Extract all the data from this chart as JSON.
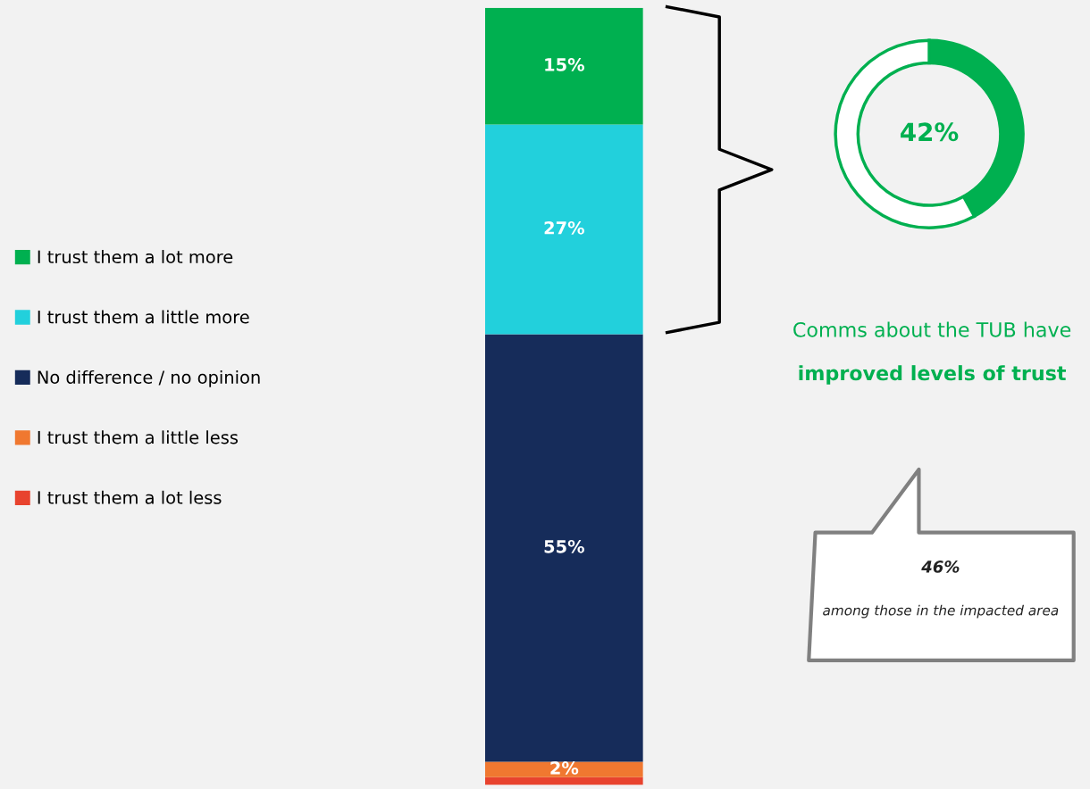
{
  "chart_data": [
    {
      "type": "bar",
      "stacked": true,
      "categories": [
        null
      ],
      "ylim": [
        0,
        100
      ],
      "tick_labels": false,
      "legend": "left",
      "series": [
        {
          "name": "I trust them a lot less",
          "color": "#e8432e",
          "values": [
            1
          ],
          "value_labels": [
            null
          ]
        },
        {
          "name": "I trust them a little less",
          "color": "#f07830",
          "values": [
            2
          ],
          "value_labels": [
            "2%"
          ]
        },
        {
          "name": "No difference / no opinion",
          "color": "#162c5a",
          "values": [
            55
          ],
          "value_labels": [
            "55%"
          ]
        },
        {
          "name": "I trust them a little more",
          "color": "#22d0dc",
          "values": [
            27
          ],
          "value_labels": [
            "27%"
          ]
        },
        {
          "name": "I trust them a lot more",
          "color": "#00b050",
          "values": [
            15
          ],
          "value_labels": [
            "15%"
          ]
        }
      ]
    },
    {
      "type": "donut",
      "categories": [
        null,
        null
      ],
      "values": [
        42,
        58
      ],
      "colors": [
        "#00b050",
        "#ffffff"
      ],
      "value_labels": [
        "42%",
        null
      ],
      "annotations": [
        "Comms about the TUB have",
        "improved levels of trust",
        "46%",
        "among those in the impacted area"
      ]
    }
  ]
}
